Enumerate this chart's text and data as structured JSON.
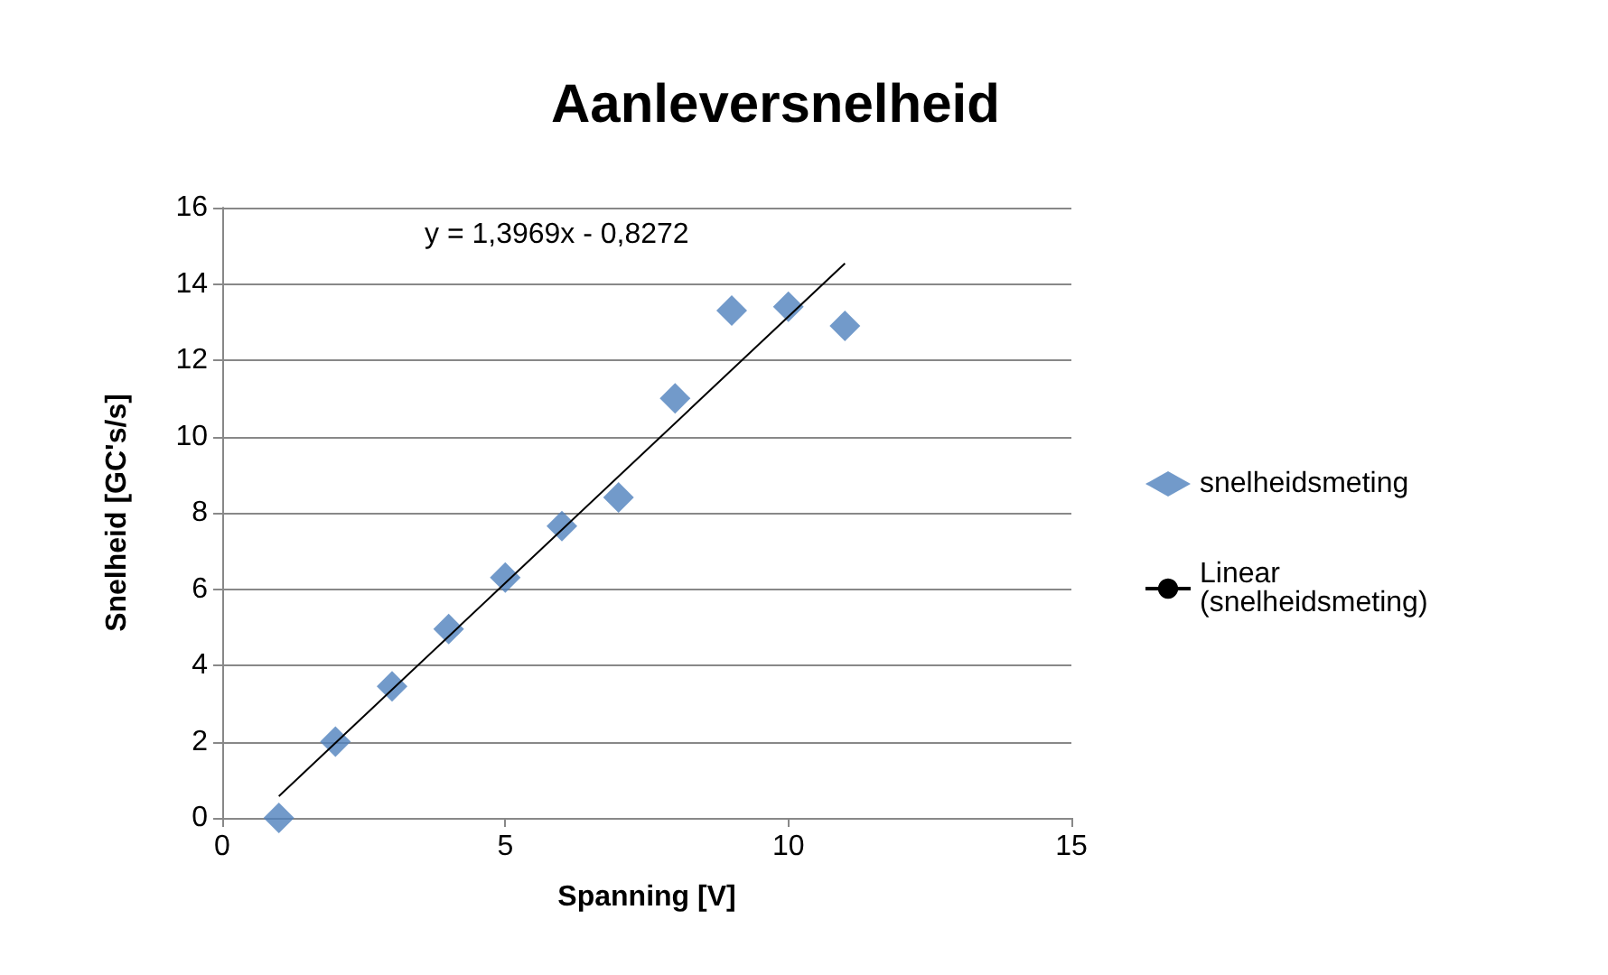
{
  "chart_data": {
    "type": "scatter",
    "title": "Aanleversnelheid",
    "xlabel": "Spanning [V]",
    "ylabel": "Snelheid [GC's/s]",
    "x": [
      1,
      2,
      3,
      4,
      5,
      6,
      7,
      8,
      9,
      10,
      11
    ],
    "series": [
      {
        "name": "snelheidsmeting",
        "color": "#4f81bd",
        "values": [
          0,
          2.0,
          3.45,
          4.95,
          6.3,
          7.65,
          8.4,
          11.0,
          13.3,
          13.4,
          12.9
        ]
      },
      {
        "name": "Linear (snelheidsmeting)",
        "type": "line",
        "color": "#000000",
        "x": [
          1,
          11
        ],
        "values": [
          0.57,
          14.54
        ],
        "marker": "none"
      }
    ],
    "xlim": [
      0,
      15
    ],
    "xticks": [
      0,
      5,
      10,
      15
    ],
    "ylim": [
      0,
      16
    ],
    "yticks": [
      0,
      2,
      4,
      6,
      8,
      10,
      12,
      14,
      16
    ],
    "grid": "y",
    "legend": "right",
    "marker": "diamond",
    "annotations": [
      "y = 1,3969x - 0,8272"
    ]
  }
}
